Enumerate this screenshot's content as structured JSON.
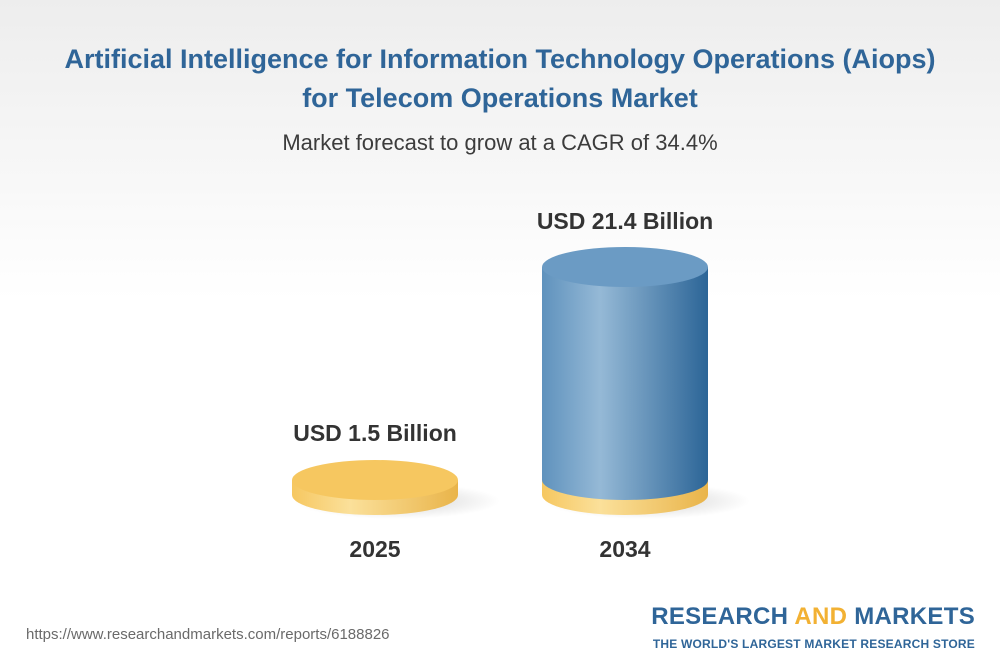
{
  "chart_data": {
    "type": "bar",
    "title_lines": [
      "Artificial Intelligence for Information Technology Operations (Aiops)",
      "for Telecom Operations Market"
    ],
    "subtitle": "Market forecast to grow at a CAGR of 34.4%",
    "categories": [
      "2025",
      "2034"
    ],
    "values": [
      1.5,
      21.4
    ],
    "value_labels": [
      "USD 1.5 Billion",
      "USD 21.4 Billion"
    ],
    "unit": "USD Billion",
    "colors": {
      "gold_light": "#fbe09a",
      "gold_mid": "#f6c760",
      "gold_dark": "#e9b44a",
      "blue_light": "#95b9d6",
      "blue_mid": "#5f92bd",
      "blue_dark": "#2c6597",
      "blue_top": "#6b9bc4"
    }
  },
  "footer": {
    "url": "https://www.researchandmarkets.com/reports/6188826",
    "brand_part1": "RESEARCH ",
    "brand_part2": "AND",
    "brand_part3": " MARKETS",
    "tagline": "THE WORLD'S LARGEST MARKET RESEARCH STORE"
  }
}
